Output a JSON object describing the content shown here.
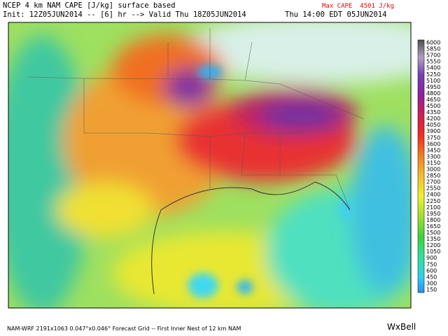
{
  "header": {
    "title": "NCEP 4 km NAM CAPE [J/kg] surface based",
    "init": "Init: 12Z05JUN2014 -- [6] hr --> Valid Thu 18Z05JUN2014",
    "valid_local": "Thu 14:00 EDT 05JUN2014",
    "max_label": "Max CAPE  4501 J/kg"
  },
  "colorbar": {
    "labels": [
      6000,
      5850,
      5700,
      5550,
      5400,
      5250,
      5100,
      4950,
      4800,
      4650,
      4500,
      4350,
      4200,
      4050,
      3900,
      3750,
      3600,
      3450,
      3300,
      3150,
      3000,
      2850,
      2700,
      2550,
      2400,
      2250,
      2100,
      1950,
      1800,
      1650,
      1500,
      1350,
      1200,
      1050,
      900,
      750,
      600,
      450,
      300,
      150
    ]
  },
  "footer": {
    "grid": "NAM-WRF 2191x1063 0.047°x0.046° Forecast Grid -- First Inner Nest of 12 km NAM",
    "logo": "WxBell"
  }
}
